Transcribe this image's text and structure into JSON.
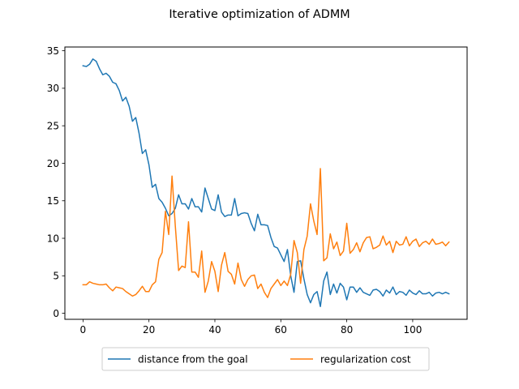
{
  "chart_data": {
    "type": "line",
    "title": "Iterative optimization of ADMM",
    "xlabel": "",
    "ylabel": "",
    "xlim": [
      -5.5,
      116.5
    ],
    "ylim": [
      -0.8,
      35.5
    ],
    "xticks": [
      0,
      20,
      40,
      60,
      80,
      100
    ],
    "yticks": [
      0,
      5,
      10,
      15,
      20,
      25,
      30,
      35
    ],
    "grid": false,
    "legend_position": "bottom-center",
    "x": [
      0,
      1,
      2,
      3,
      4,
      5,
      6,
      7,
      8,
      9,
      10,
      11,
      12,
      13,
      14,
      15,
      16,
      17,
      18,
      19,
      20,
      21,
      22,
      23,
      24,
      25,
      26,
      27,
      28,
      29,
      30,
      31,
      32,
      33,
      34,
      35,
      36,
      37,
      38,
      39,
      40,
      41,
      42,
      43,
      44,
      45,
      46,
      47,
      48,
      49,
      50,
      51,
      52,
      53,
      54,
      55,
      56,
      57,
      58,
      59,
      60,
      61,
      62,
      63,
      64,
      65,
      66,
      67,
      68,
      69,
      70,
      71,
      72,
      73,
      74,
      75,
      76,
      77,
      78,
      79,
      80,
      81,
      82,
      83,
      84,
      85,
      86,
      87,
      88,
      89,
      90,
      91,
      92,
      93,
      94,
      95,
      96,
      97,
      98,
      99,
      100,
      101,
      102,
      103,
      104,
      105,
      106,
      107,
      108,
      109,
      110,
      111
    ],
    "series": [
      {
        "name": "distance from the goal",
        "color": "#1f77b4",
        "values": [
          33.0,
          32.9,
          33.2,
          33.9,
          33.6,
          32.6,
          31.8,
          32.0,
          31.6,
          30.8,
          30.6,
          29.7,
          28.3,
          28.8,
          27.6,
          25.6,
          26.1,
          24.0,
          21.3,
          21.8,
          19.8,
          16.8,
          17.2,
          15.3,
          14.8,
          14.0,
          13.0,
          13.3,
          14.0,
          15.8,
          14.6,
          14.6,
          13.9,
          15.3,
          14.2,
          14.2,
          13.5,
          16.7,
          15.3,
          13.9,
          13.7,
          15.8,
          13.5,
          12.9,
          13.1,
          13.1,
          15.3,
          13.0,
          13.3,
          13.4,
          13.3,
          12.0,
          11.0,
          13.2,
          11.8,
          11.8,
          11.7,
          10.1,
          8.9,
          8.7,
          7.8,
          6.9,
          8.5,
          5.0,
          2.8,
          6.9,
          7.0,
          4.6,
          2.5,
          1.4,
          2.5,
          2.9,
          0.9,
          4.3,
          5.5,
          2.5,
          3.9,
          2.7,
          4.0,
          3.5,
          1.8,
          3.5,
          3.5,
          2.8,
          3.4,
          2.8,
          2.6,
          2.4,
          3.1,
          3.2,
          2.9,
          2.3,
          3.1,
          2.7,
          3.5,
          2.5,
          2.9,
          2.8,
          2.4,
          3.1,
          2.7,
          2.5,
          3.0,
          2.6,
          2.6,
          2.8,
          2.3,
          2.7,
          2.8,
          2.6,
          2.8,
          2.6
        ]
      },
      {
        "name": "regularization cost",
        "color": "#ff7f0e",
        "values": [
          3.8,
          3.8,
          4.2,
          4.0,
          3.9,
          3.8,
          3.8,
          3.9,
          3.4,
          3.0,
          3.5,
          3.4,
          3.3,
          2.9,
          2.6,
          2.3,
          2.5,
          3.0,
          3.6,
          2.9,
          2.9,
          3.8,
          4.2,
          7.2,
          8.1,
          13.6,
          10.5,
          18.3,
          11.6,
          5.7,
          6.3,
          6.1,
          12.2,
          5.5,
          5.5,
          4.8,
          8.3,
          2.8,
          4.3,
          6.9,
          5.6,
          2.9,
          6.4,
          8.1,
          5.6,
          5.2,
          3.9,
          6.7,
          4.5,
          3.6,
          4.5,
          5.0,
          5.1,
          3.3,
          3.9,
          2.8,
          2.1,
          3.3,
          3.9,
          4.5,
          3.7,
          4.3,
          3.7,
          5.2,
          9.7,
          8.1,
          4.0,
          8.5,
          10.3,
          14.6,
          12.3,
          10.5,
          19.3,
          7.0,
          7.4,
          10.6,
          8.6,
          9.5,
          7.7,
          8.3,
          12.0,
          8.0,
          8.5,
          9.4,
          8.2,
          9.4,
          10.1,
          10.2,
          8.6,
          8.8,
          9.1,
          10.3,
          9.1,
          9.6,
          8.1,
          9.6,
          9.1,
          9.2,
          10.2,
          9.0,
          9.6,
          9.9,
          8.9,
          9.4,
          9.6,
          9.2,
          9.9,
          9.2,
          9.3,
          9.5,
          9.0,
          9.5
        ]
      }
    ]
  }
}
